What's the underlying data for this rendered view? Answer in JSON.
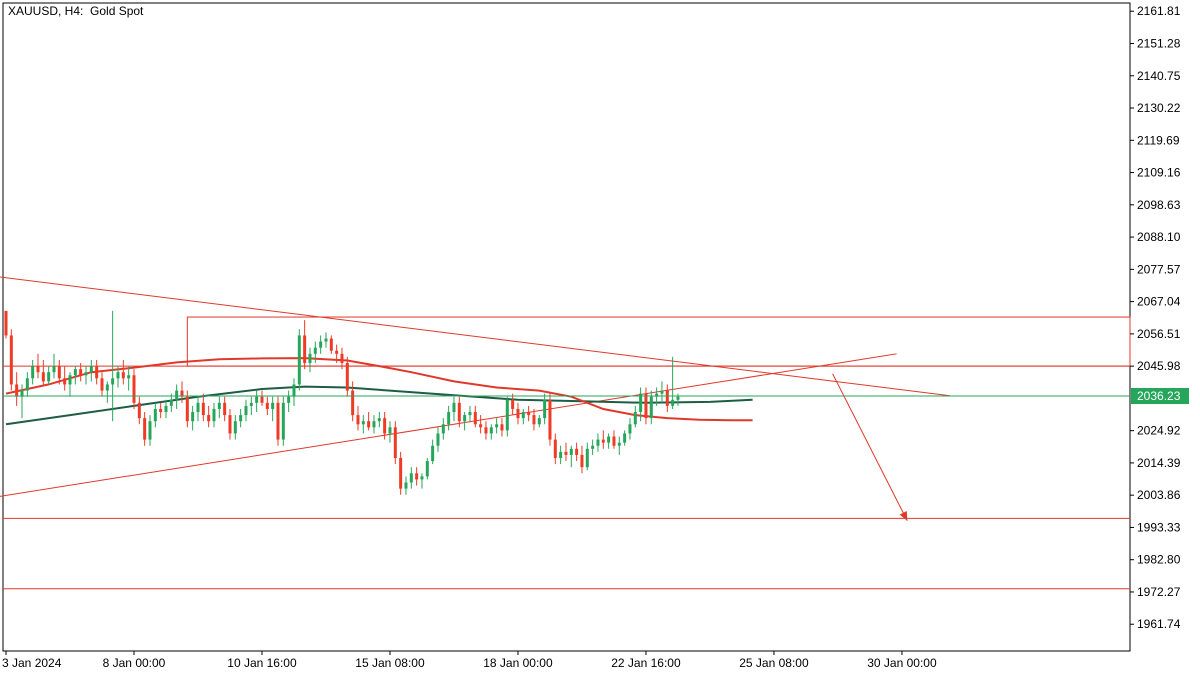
{
  "chart_data": {
    "type": "candlestick",
    "title": "XAUUSD, H4:  Gold Spot",
    "ylim": [
      1953.0,
      2164.5
    ],
    "y_ticks": [
      "2161.81",
      "2151.28",
      "2140.75",
      "2130.22",
      "2119.69",
      "2109.16",
      "2098.63",
      "2088.10",
      "2077.57",
      "2067.04",
      "2056.51",
      "2045.98",
      "2024.92",
      "2014.39",
      "2003.86",
      "1993.33",
      "1982.80",
      "1972.27",
      "1961.74"
    ],
    "x_ticks": [
      {
        "label": "3 Jan 2024",
        "bar": 0
      },
      {
        "label": "8 Jan 00:00",
        "bar": 24
      },
      {
        "label": "10 Jan 16:00",
        "bar": 48
      },
      {
        "label": "15 Jan 08:00",
        "bar": 72
      },
      {
        "label": "18 Jan 00:00",
        "bar": 96
      },
      {
        "label": "22 Jan 16:00",
        "bar": 120
      },
      {
        "label": "25 Jan 08:00",
        "bar": 144
      },
      {
        "label": "30 Jan 00:00",
        "bar": 168
      }
    ],
    "total_bars": 211,
    "current_price": {
      "label": "2036.23",
      "value": 2036.23
    },
    "colors": {
      "bull": "#26a65b",
      "bear": "#ef3a24",
      "line_red": "#e0382b",
      "ma_dark": "#1e5c44",
      "price_line": "#26a65b",
      "axis": "#000000"
    },
    "ohlc": [
      [
        2064,
        2064,
        2055,
        2056
      ],
      [
        2056,
        2058,
        2038,
        2040
      ],
      [
        2040,
        2044,
        2033,
        2036
      ],
      [
        2036,
        2040,
        2029,
        2038
      ],
      [
        2038,
        2044,
        2036,
        2042
      ],
      [
        2042,
        2048,
        2040,
        2046
      ],
      [
        2046,
        2050,
        2042,
        2044
      ],
      [
        2044,
        2048,
        2040,
        2041
      ],
      [
        2041,
        2046,
        2040,
        2044
      ],
      [
        2044,
        2050,
        2042,
        2046
      ],
      [
        2046,
        2048,
        2040,
        2042
      ],
      [
        2042,
        2046,
        2038,
        2040
      ],
      [
        2040,
        2044,
        2036,
        2043
      ],
      [
        2043,
        2046,
        2040,
        2045
      ],
      [
        2045,
        2047,
        2041,
        2043
      ],
      [
        2043,
        2046,
        2040,
        2044
      ],
      [
        2044,
        2048,
        2041,
        2046
      ],
      [
        2046,
        2048,
        2040,
        2042
      ],
      [
        2042,
        2044,
        2036,
        2038
      ],
      [
        2038,
        2041,
        2034,
        2040
      ],
      [
        2040,
        2064,
        2028,
        2042
      ],
      [
        2042,
        2046,
        2039,
        2044
      ],
      [
        2044,
        2048,
        2040,
        2042
      ],
      [
        2042,
        2046,
        2038,
        2043
      ],
      [
        2043,
        2045,
        2032,
        2034
      ],
      [
        2034,
        2036,
        2027,
        2029
      ],
      [
        2029,
        2031,
        2020,
        2022
      ],
      [
        2022,
        2030,
        2020,
        2028
      ],
      [
        2028,
        2034,
        2026,
        2032
      ],
      [
        2032,
        2034,
        2029,
        2031
      ],
      [
        2031,
        2035,
        2029,
        2033
      ],
      [
        2033,
        2037,
        2031,
        2035
      ],
      [
        2035,
        2040,
        2032,
        2038
      ],
      [
        2038,
        2041,
        2034,
        2036
      ],
      [
        2036,
        2038,
        2026,
        2028
      ],
      [
        2028,
        2033,
        2025,
        2031
      ],
      [
        2031,
        2036,
        2028,
        2034
      ],
      [
        2034,
        2037,
        2028,
        2030
      ],
      [
        2030,
        2033,
        2026,
        2028
      ],
      [
        2028,
        2034,
        2026,
        2032
      ],
      [
        2032,
        2036,
        2029,
        2034
      ],
      [
        2034,
        2036,
        2028,
        2030
      ],
      [
        2030,
        2032,
        2022,
        2024
      ],
      [
        2024,
        2030,
        2022,
        2028
      ],
      [
        2028,
        2032,
        2026,
        2030
      ],
      [
        2030,
        2035,
        2028,
        2033
      ],
      [
        2033,
        2036,
        2030,
        2034
      ],
      [
        2034,
        2038,
        2031,
        2036
      ],
      [
        2036,
        2038,
        2033,
        2034
      ],
      [
        2034,
        2036,
        2030,
        2032
      ],
      [
        2032,
        2036,
        2028,
        2034
      ],
      [
        2034,
        2036,
        2020,
        2022
      ],
      [
        2022,
        2036,
        2020,
        2034
      ],
      [
        2034,
        2038,
        2031,
        2036
      ],
      [
        2036,
        2042,
        2033,
        2040
      ],
      [
        2040,
        2058,
        2038,
        2056
      ],
      [
        2056,
        2061,
        2045,
        2047
      ],
      [
        2047,
        2052,
        2044,
        2050
      ],
      [
        2050,
        2054,
        2047,
        2052
      ],
      [
        2052,
        2056,
        2050,
        2054
      ],
      [
        2054,
        2057,
        2052,
        2055
      ],
      [
        2055,
        2056,
        2050,
        2051
      ],
      [
        2051,
        2053,
        2047,
        2050
      ],
      [
        2050,
        2052,
        2045,
        2047
      ],
      [
        2047,
        2049,
        2036,
        2038
      ],
      [
        2038,
        2041,
        2028,
        2030
      ],
      [
        2030,
        2033,
        2025,
        2027
      ],
      [
        2027,
        2030,
        2024,
        2028
      ],
      [
        2028,
        2031,
        2025,
        2026
      ],
      [
        2026,
        2030,
        2024,
        2028
      ],
      [
        2028,
        2031,
        2026,
        2029
      ],
      [
        2029,
        2031,
        2022,
        2024
      ],
      [
        2024,
        2028,
        2021,
        2026
      ],
      [
        2026,
        2028,
        2014,
        2016
      ],
      [
        2016,
        2018,
        2004,
        2006
      ],
      [
        2006,
        2010,
        2004,
        2008
      ],
      [
        2008,
        2013,
        2006,
        2011
      ],
      [
        2011,
        2013,
        2007,
        2009
      ],
      [
        2009,
        2011,
        2006,
        2010
      ],
      [
        2010,
        2016,
        2009,
        2015
      ],
      [
        2015,
        2022,
        2014,
        2020
      ],
      [
        2020,
        2026,
        2018,
        2024
      ],
      [
        2024,
        2029,
        2022,
        2027
      ],
      [
        2027,
        2033,
        2025,
        2031
      ],
      [
        2031,
        2036,
        2028,
        2034
      ],
      [
        2034,
        2036,
        2026,
        2028
      ],
      [
        2028,
        2031,
        2025,
        2030
      ],
      [
        2030,
        2033,
        2028,
        2031
      ],
      [
        2031,
        2033,
        2026,
        2027
      ],
      [
        2027,
        2030,
        2024,
        2026
      ],
      [
        2026,
        2028,
        2022,
        2024
      ],
      [
        2024,
        2027,
        2022,
        2026
      ],
      [
        2026,
        2029,
        2024,
        2027
      ],
      [
        2027,
        2029,
        2023,
        2025
      ],
      [
        2025,
        2036,
        2023,
        2035
      ],
      [
        2035,
        2037,
        2030,
        2032
      ],
      [
        2032,
        2034,
        2027,
        2029
      ],
      [
        2029,
        2032,
        2027,
        2031
      ],
      [
        2031,
        2033,
        2028,
        2030
      ],
      [
        2030,
        2032,
        2025,
        2027
      ],
      [
        2027,
        2030,
        2026,
        2029
      ],
      [
        2029,
        2037,
        2027,
        2035
      ],
      [
        2035,
        2037,
        2020,
        2022
      ],
      [
        2022,
        2024,
        2014,
        2016
      ],
      [
        2016,
        2020,
        2014,
        2018
      ],
      [
        2018,
        2021,
        2015,
        2017
      ],
      [
        2017,
        2020,
        2013,
        2019
      ],
      [
        2019,
        2021,
        2015,
        2017
      ],
      [
        2017,
        2020,
        2011,
        2013
      ],
      [
        2013,
        2021,
        2012,
        2019
      ],
      [
        2019,
        2022,
        2017,
        2020
      ],
      [
        2020,
        2024,
        2018,
        2022
      ],
      [
        2022,
        2025,
        2019,
        2021
      ],
      [
        2021,
        2024,
        2019,
        2023
      ],
      [
        2023,
        2025,
        2019,
        2020
      ],
      [
        2020,
        2023,
        2017,
        2021
      ],
      [
        2021,
        2025,
        2020,
        2024
      ],
      [
        2024,
        2029,
        2022,
        2027
      ],
      [
        2027,
        2033,
        2026,
        2031
      ],
      [
        2031,
        2039,
        2028,
        2037
      ],
      [
        2037,
        2039,
        2027,
        2029
      ],
      [
        2029,
        2038,
        2027,
        2036
      ],
      [
        2036,
        2039,
        2033,
        2037
      ],
      [
        2037,
        2041,
        2034,
        2038
      ],
      [
        2038,
        2040,
        2031,
        2033
      ],
      [
        2033,
        2049,
        2032,
        2035
      ],
      [
        2035,
        2037,
        2033,
        2036
      ]
    ],
    "ma_fast": [
      [
        0,
        2037
      ],
      [
        8,
        2040
      ],
      [
        16,
        2044
      ],
      [
        24,
        2045.5
      ],
      [
        32,
        2047.2
      ],
      [
        40,
        2048.2
      ],
      [
        48,
        2048.5
      ],
      [
        56,
        2048.6
      ],
      [
        64,
        2047.8
      ],
      [
        70,
        2046
      ],
      [
        76,
        2044
      ],
      [
        84,
        2041
      ],
      [
        92,
        2039
      ],
      [
        100,
        2038
      ],
      [
        106,
        2036
      ],
      [
        112,
        2032
      ],
      [
        118,
        2030
      ],
      [
        124,
        2029
      ],
      [
        130,
        2028.5
      ],
      [
        136,
        2028.3
      ],
      [
        140,
        2028.3
      ]
    ],
    "ma_slow": [
      [
        0,
        2027
      ],
      [
        12,
        2030
      ],
      [
        24,
        2033
      ],
      [
        36,
        2036
      ],
      [
        48,
        2038.5
      ],
      [
        56,
        2039.3
      ],
      [
        64,
        2039
      ],
      [
        72,
        2038
      ],
      [
        84,
        2036.5
      ],
      [
        96,
        2035
      ],
      [
        108,
        2034.5
      ],
      [
        120,
        2034
      ],
      [
        132,
        2034.3
      ],
      [
        140,
        2035
      ]
    ],
    "trendlines": [
      {
        "from": [
          -10,
          2077
        ],
        "to": [
          177,
          2036.3
        ]
      },
      {
        "from": [
          -10,
          2001
        ],
        "to": [
          167,
          2050
        ]
      }
    ],
    "boxes": [
      {
        "from": [
          34,
          2062
        ],
        "to": [
          211,
          2046
        ]
      }
    ],
    "hlines": [
      2045.98,
      1996.3,
      1973.3
    ],
    "arrow": {
      "from": [
        155,
        2043.5
      ],
      "to": [
        169,
        1995.5
      ]
    }
  }
}
